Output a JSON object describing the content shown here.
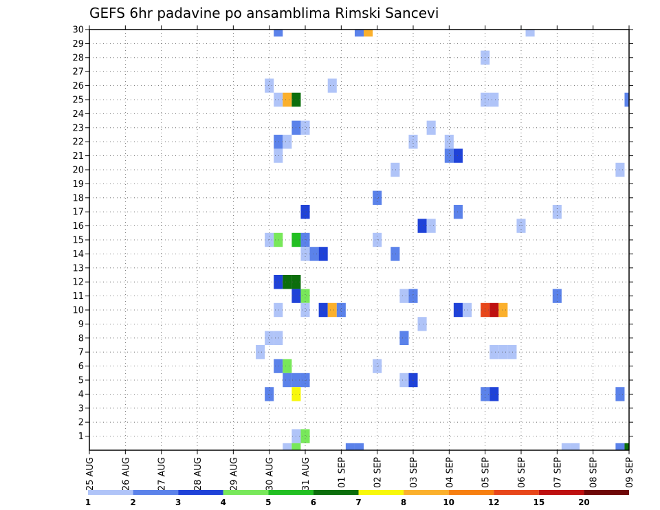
{
  "chart_data": {
    "type": "heatmap",
    "title": "GEFS 6hr padavine po ansamblima Rimski Sancevi",
    "xlabel": "",
    "ylabel": "",
    "x_tick_labels": [
      "25 AUG",
      "26 AUG",
      "27 AUG",
      "28 AUG",
      "29 AUG",
      "30 AUG",
      "31 AUG",
      "01 SEP",
      "02 SEP",
      "03 SEP",
      "04 SEP",
      "05 SEP",
      "06 SEP",
      "07 SEP",
      "08 SEP",
      "09 SEP"
    ],
    "x_range_steps": [
      0,
      60
    ],
    "steps_per_day": 4,
    "y_tick_labels": [
      "1",
      "2",
      "3",
      "4",
      "5",
      "6",
      "7",
      "8",
      "9",
      "10",
      "11",
      "12",
      "13",
      "14",
      "15",
      "16",
      "17",
      "18",
      "19",
      "20",
      "21",
      "22",
      "23",
      "24",
      "25",
      "26",
      "27",
      "28",
      "29",
      "30"
    ],
    "y_range": [
      0,
      30
    ],
    "grid": true,
    "colorbar": {
      "labels": [
        "1",
        "2",
        "3",
        "4",
        "5",
        "6",
        "7",
        "8",
        "10",
        "12",
        "15",
        "20"
      ],
      "colors": [
        "#b0c4f8",
        "#5b82ea",
        "#1f42d8",
        "#78e85a",
        "#22bf22",
        "#0c6e0c",
        "#f8f80a",
        "#fbb02c",
        "#f77f10",
        "#e8461a",
        "#be1010",
        "#6e0808"
      ],
      "bin_edges": [
        1,
        2,
        3,
        4,
        5,
        6,
        7,
        8,
        10,
        12,
        15,
        20
      ]
    },
    "cells_note": "each cell: [time step index (6h from 25 AUG 00Z), member row, precipitation bin index 0..11]",
    "cells": [
      [
        21,
        30,
        1
      ],
      [
        30,
        30,
        1
      ],
      [
        31,
        30,
        7
      ],
      [
        49,
        30,
        0
      ],
      [
        44,
        28,
        0
      ],
      [
        20,
        26,
        0
      ],
      [
        27,
        26,
        0
      ],
      [
        21,
        25,
        0
      ],
      [
        22,
        25,
        7
      ],
      [
        23,
        25,
        5
      ],
      [
        44,
        25,
        0
      ],
      [
        45,
        25,
        0
      ],
      [
        60,
        25,
        1
      ],
      [
        23,
        23,
        1
      ],
      [
        24,
        23,
        0
      ],
      [
        38,
        23,
        0
      ],
      [
        21,
        22,
        1
      ],
      [
        22,
        22,
        0
      ],
      [
        36,
        22,
        0
      ],
      [
        40,
        22,
        0
      ],
      [
        40,
        21,
        1
      ],
      [
        41,
        21,
        2
      ],
      [
        21,
        21,
        0
      ],
      [
        34,
        20,
        0
      ],
      [
        59,
        20,
        0
      ],
      [
        32,
        18,
        1
      ],
      [
        24,
        17,
        2
      ],
      [
        41,
        17,
        1
      ],
      [
        52,
        17,
        0
      ],
      [
        37,
        16,
        2
      ],
      [
        38,
        16,
        0
      ],
      [
        48,
        16,
        0
      ],
      [
        20,
        15,
        0
      ],
      [
        21,
        15,
        3
      ],
      [
        23,
        15,
        4
      ],
      [
        24,
        15,
        1
      ],
      [
        32,
        15,
        0
      ],
      [
        24,
        14,
        0
      ],
      [
        25,
        14,
        1
      ],
      [
        26,
        14,
        2
      ],
      [
        34,
        14,
        1
      ],
      [
        21,
        12,
        2
      ],
      [
        22,
        12,
        5
      ],
      [
        23,
        12,
        5
      ],
      [
        23,
        11,
        2
      ],
      [
        24,
        11,
        3
      ],
      [
        35,
        11,
        0
      ],
      [
        36,
        11,
        1
      ],
      [
        52,
        11,
        1
      ],
      [
        21,
        10,
        0
      ],
      [
        24,
        10,
        0
      ],
      [
        26,
        10,
        2
      ],
      [
        27,
        10,
        7
      ],
      [
        28,
        10,
        1
      ],
      [
        41,
        10,
        2
      ],
      [
        42,
        10,
        0
      ],
      [
        44,
        10,
        9
      ],
      [
        45,
        10,
        10
      ],
      [
        46,
        10,
        7
      ],
      [
        37,
        9,
        0
      ],
      [
        20,
        8,
        0
      ],
      [
        21,
        8,
        0
      ],
      [
        35,
        8,
        1
      ],
      [
        19,
        7,
        0
      ],
      [
        45,
        7,
        0
      ],
      [
        46,
        7,
        0
      ],
      [
        47,
        7,
        0
      ],
      [
        21,
        6,
        1
      ],
      [
        22,
        6,
        3
      ],
      [
        32,
        6,
        0
      ],
      [
        22,
        5,
        1
      ],
      [
        23,
        5,
        1
      ],
      [
        24,
        5,
        1
      ],
      [
        35,
        5,
        0
      ],
      [
        36,
        5,
        2
      ],
      [
        20,
        4,
        1
      ],
      [
        23,
        4,
        6
      ],
      [
        44,
        4,
        1
      ],
      [
        45,
        4,
        2
      ],
      [
        59,
        4,
        1
      ],
      [
        23,
        1,
        0
      ],
      [
        24,
        1,
        3
      ],
      [
        22,
        0,
        0
      ],
      [
        23,
        0,
        3
      ],
      [
        29,
        0,
        1
      ],
      [
        30,
        0,
        1
      ],
      [
        53,
        0,
        0
      ],
      [
        54,
        0,
        0
      ],
      [
        59,
        0,
        1
      ],
      [
        60,
        0,
        5
      ]
    ]
  }
}
